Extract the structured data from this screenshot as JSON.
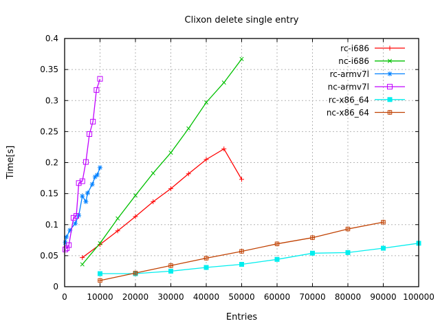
{
  "chart_data": {
    "type": "line",
    "title": "Clixon delete single entry",
    "xlabel": "Entries",
    "ylabel": "Time[s]",
    "xlim": [
      0,
      100000
    ],
    "ylim": [
      0,
      0.4
    ],
    "xtick_step": 10000,
    "ytick_step": 0.05,
    "xtick_labels": [
      "0",
      "10000",
      "20000",
      "30000",
      "40000",
      "50000",
      "60000",
      "70000",
      "80000",
      "90000",
      "100000"
    ],
    "ytick_labels": [
      "0",
      "0.05",
      "0.1",
      "0.15",
      "0.2",
      "0.25",
      "0.3",
      "0.35",
      "0.4"
    ],
    "grid": "dashed",
    "grid_color": "#b4b4b4",
    "border_color": "#000000",
    "legend_position": "top-right-inside",
    "series": [
      {
        "name": "rc-i686",
        "color": "#ff0000",
        "marker": "plus",
        "points": [
          [
            5000,
            0.047
          ],
          [
            10000,
            0.068
          ],
          [
            15000,
            0.09
          ],
          [
            20000,
            0.113
          ],
          [
            25000,
            0.137
          ],
          [
            30000,
            0.158
          ],
          [
            35000,
            0.182
          ],
          [
            40000,
            0.205
          ],
          [
            45000,
            0.222
          ],
          [
            50000,
            0.173
          ]
        ]
      },
      {
        "name": "nc-i686",
        "color": "#00c000",
        "marker": "cross",
        "points": [
          [
            5000,
            0.036
          ],
          [
            10000,
            0.07
          ],
          [
            15000,
            0.11
          ],
          [
            20000,
            0.147
          ],
          [
            25000,
            0.183
          ],
          [
            30000,
            0.216
          ],
          [
            35000,
            0.255
          ],
          [
            40000,
            0.297
          ],
          [
            45000,
            0.329
          ],
          [
            50000,
            0.367
          ]
        ]
      },
      {
        "name": "rc-armv7l",
        "color": "#0080ff",
        "marker": "star",
        "points": [
          [
            200,
            0.071
          ],
          [
            500,
            0.08
          ],
          [
            1500,
            0.091
          ],
          [
            3000,
            0.102
          ],
          [
            4000,
            0.115
          ],
          [
            5000,
            0.146
          ],
          [
            6000,
            0.137
          ],
          [
            6500,
            0.151
          ],
          [
            7800,
            0.165
          ],
          [
            8600,
            0.177
          ],
          [
            9200,
            0.18
          ],
          [
            10000,
            0.192
          ]
        ]
      },
      {
        "name": "nc-armv7l",
        "color": "#c000ff",
        "marker": "square-open",
        "points": [
          [
            200,
            0.06
          ],
          [
            600,
            0.062
          ],
          [
            1200,
            0.067
          ],
          [
            2500,
            0.111
          ],
          [
            3300,
            0.114
          ],
          [
            4000,
            0.167
          ],
          [
            5000,
            0.17
          ],
          [
            6000,
            0.201
          ],
          [
            7000,
            0.246
          ],
          [
            8000,
            0.266
          ],
          [
            9000,
            0.317
          ],
          [
            10000,
            0.335
          ]
        ]
      },
      {
        "name": "rc-x86_64",
        "color": "#00eeee",
        "marker": "square-filled",
        "points": [
          [
            10000,
            0.021
          ],
          [
            20000,
            0.021
          ],
          [
            30000,
            0.025
          ],
          [
            40000,
            0.031
          ],
          [
            50000,
            0.036
          ],
          [
            60000,
            0.044
          ],
          [
            70000,
            0.054
          ],
          [
            80000,
            0.055
          ],
          [
            90000,
            0.062
          ],
          [
            100000,
            0.07
          ]
        ]
      },
      {
        "name": "nc-x86_64",
        "color": "#c04000",
        "marker": "square-plus",
        "points": [
          [
            10000,
            0.01
          ],
          [
            20000,
            0.022
          ],
          [
            30000,
            0.034
          ],
          [
            40000,
            0.046
          ],
          [
            50000,
            0.057
          ],
          [
            60000,
            0.069
          ],
          [
            70000,
            0.079
          ],
          [
            80000,
            0.093
          ],
          [
            90000,
            0.104
          ]
        ]
      }
    ]
  }
}
